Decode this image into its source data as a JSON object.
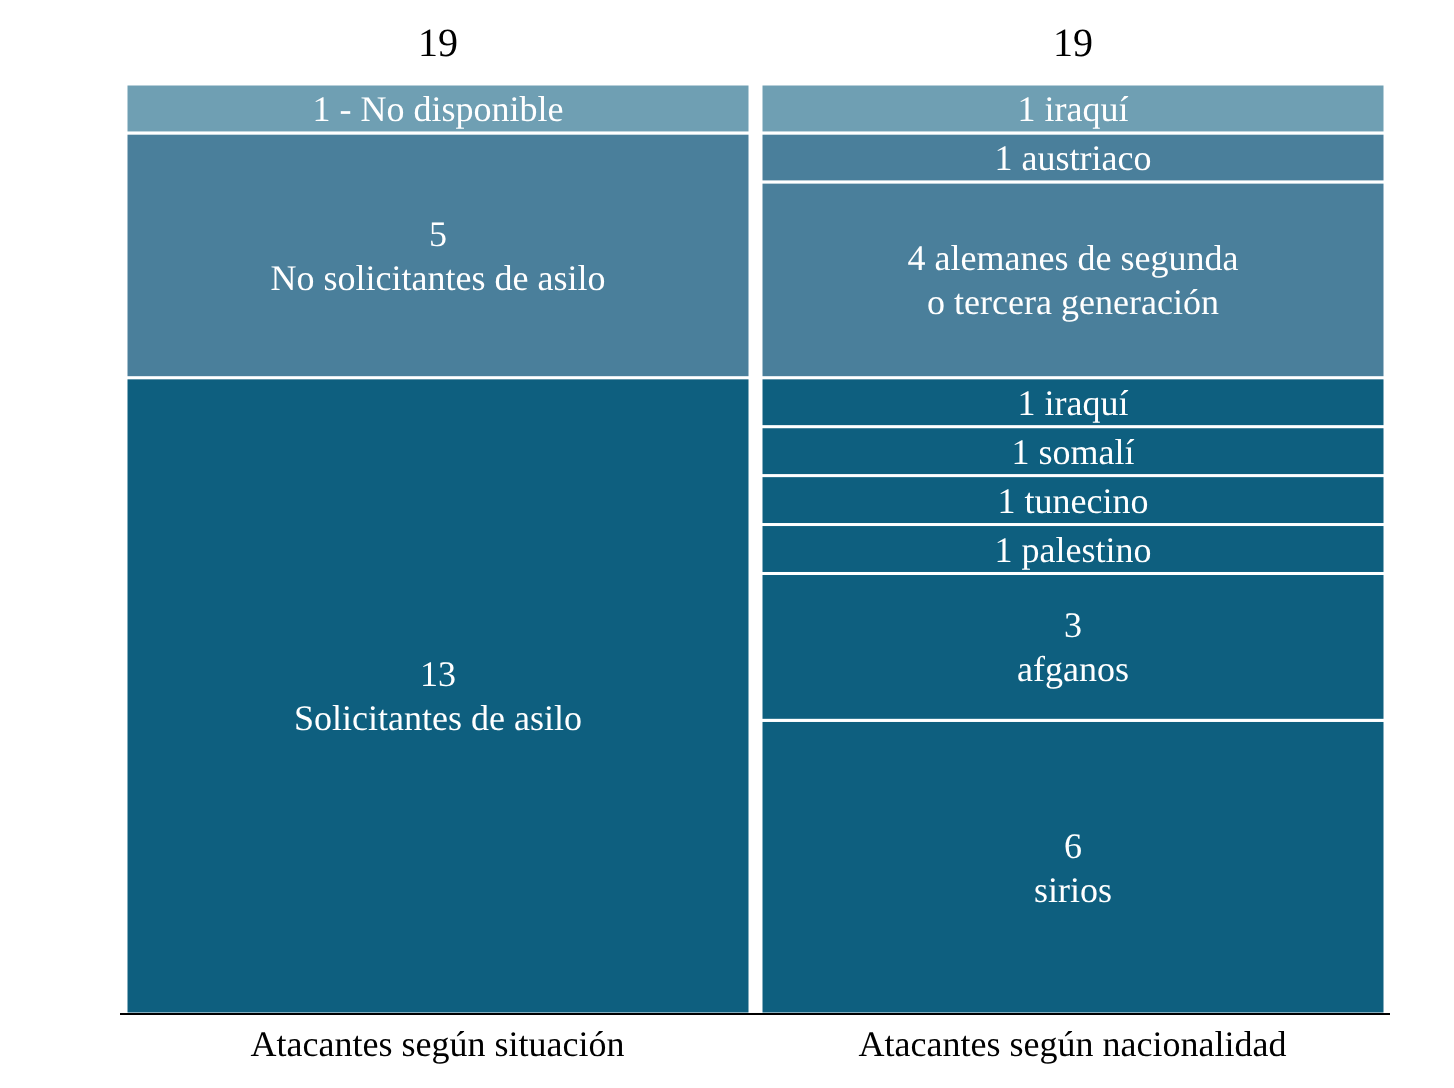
{
  "chart_data": {
    "type": "bar",
    "stacked": true,
    "tick_labels": "x",
    "categories": [
      "Atacantes según situación",
      "Atacantes según nacionalidad"
    ],
    "series": [
      {
        "values": [
          13,
          6
        ],
        "colors": [
          "#0e5f7f",
          "#0e5f7f"
        ],
        "value_labels": [
          "13\nSolicitantes de asilo",
          "6\nsirios"
        ]
      },
      {
        "values": [
          5,
          3
        ],
        "colors": [
          "#4a7f9b",
          "#0e5f7f"
        ],
        "value_labels": [
          "5\nNo solicitantes de asilo",
          "3\nafganos"
        ]
      },
      {
        "values": [
          1,
          1
        ],
        "colors": [
          "#6f9fb3",
          "#0e5f7f"
        ],
        "value_labels": [
          "1 - No disponible",
          "1 palestino"
        ]
      },
      {
        "values": [
          null,
          1
        ],
        "colors": [
          null,
          "#0e5f7f"
        ],
        "value_labels": [
          null,
          "1 tunecino"
        ]
      },
      {
        "values": [
          null,
          1
        ],
        "colors": [
          null,
          "#0e5f7f"
        ],
        "value_labels": [
          null,
          "1 somalí"
        ]
      },
      {
        "values": [
          null,
          1
        ],
        "colors": [
          null,
          "#0e5f7f"
        ],
        "value_labels": [
          null,
          "1 iraquí"
        ]
      },
      {
        "values": [
          null,
          4
        ],
        "colors": [
          null,
          "#4a7f9b"
        ],
        "value_labels": [
          null,
          "4 alemanes de segunda\no tercera generación"
        ]
      },
      {
        "values": [
          null,
          1
        ],
        "colors": [
          null,
          "#4a7f9b"
        ],
        "value_labels": [
          null,
          "1 austriaco"
        ]
      },
      {
        "values": [
          null,
          1
        ],
        "colors": [
          null,
          "#6f9fb3"
        ],
        "value_labels": [
          null,
          "1 iraquí"
        ]
      }
    ],
    "totals": [
      "19",
      "19"
    ]
  }
}
